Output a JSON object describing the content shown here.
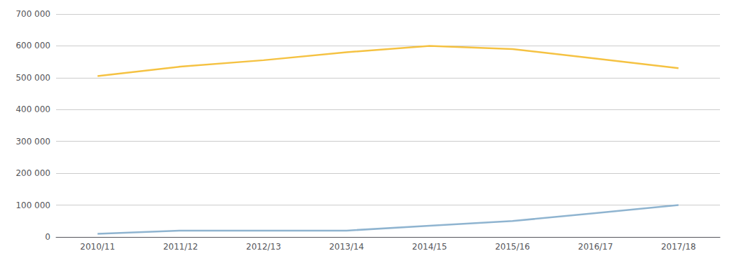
{
  "chart_data": {
    "type": "line",
    "categories": [
      "2010/11",
      "2011/12",
      "2012/13",
      "2013/14",
      "2014/15",
      "2015/16",
      "2016/17",
      "2017/18"
    ],
    "series": [
      {
        "color": "#F5C242",
        "values": [
          505000,
          535000,
          555000,
          580000,
          600000,
          590000,
          560000,
          530000
        ]
      },
      {
        "color": "#8FB4D0",
        "values": [
          10000,
          20000,
          20000,
          20000,
          35000,
          50000,
          75000,
          100000
        ]
      }
    ],
    "ylim": [
      0,
      700000
    ],
    "yticks": [
      0,
      {
        "value": 100000,
        "label": "100 000"
      },
      {
        "value": 200000,
        "label": "200 000"
      },
      {
        "value": 300000,
        "label": "300 000"
      },
      {
        "value": 400000,
        "label": "400 000"
      },
      {
        "value": 500000,
        "label": "500 000"
      },
      {
        "value": 600000,
        "label": "600 000"
      },
      {
        "value": 700000,
        "label": "700 000"
      }
    ],
    "grid": true
  }
}
